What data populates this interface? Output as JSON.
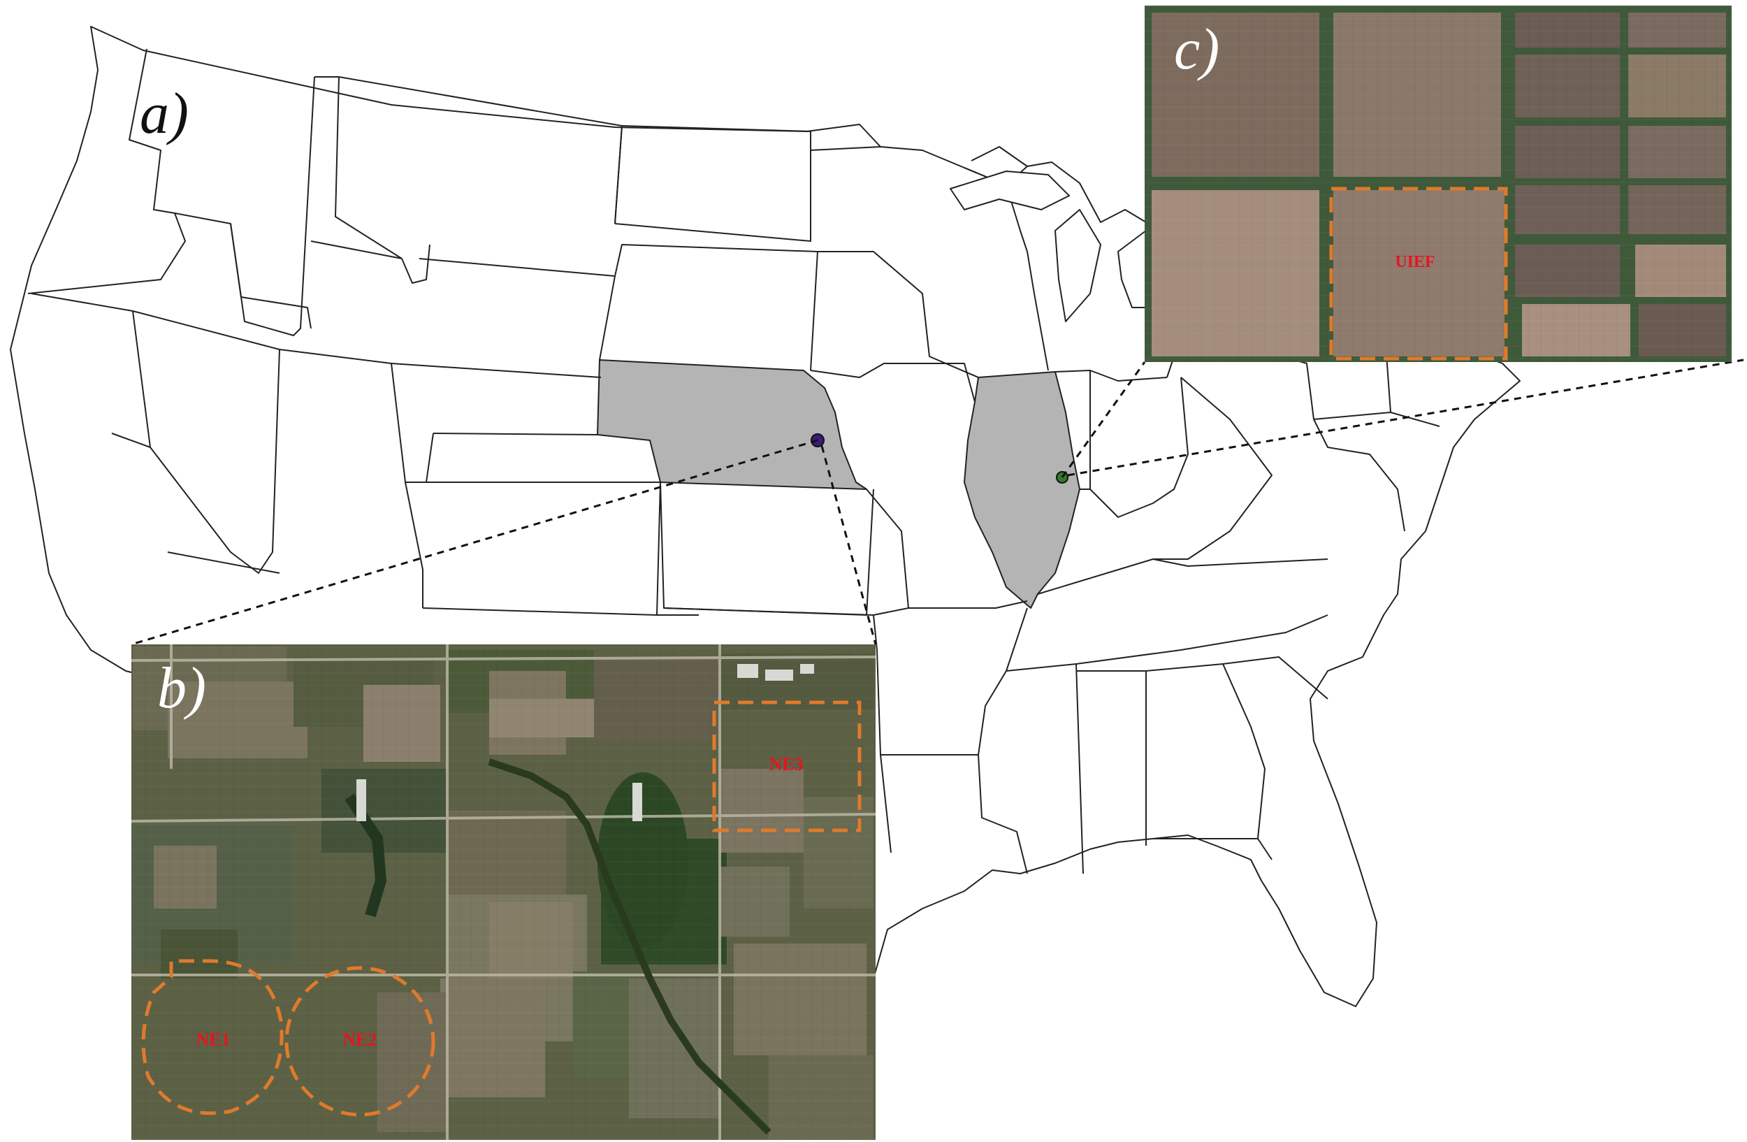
{
  "panels": {
    "a": {
      "label": "a)",
      "highlighted_states": [
        "Nebraska",
        "Illinois"
      ]
    },
    "b": {
      "label": "b)",
      "sites": [
        "NE1",
        "NE2",
        "NE3"
      ]
    },
    "c": {
      "label": "c)",
      "sites": [
        "UIEF"
      ]
    }
  },
  "colors": {
    "state_fill": "#ffffff",
    "state_border": "#222222",
    "highlight_fill": "#b4b4b4",
    "site_outline": "#e07a2c",
    "site_label": "#e8141e",
    "leader_line": "#111111",
    "marker_nebraska": "#3b1a78",
    "marker_illinois": "#2f7a2a"
  }
}
